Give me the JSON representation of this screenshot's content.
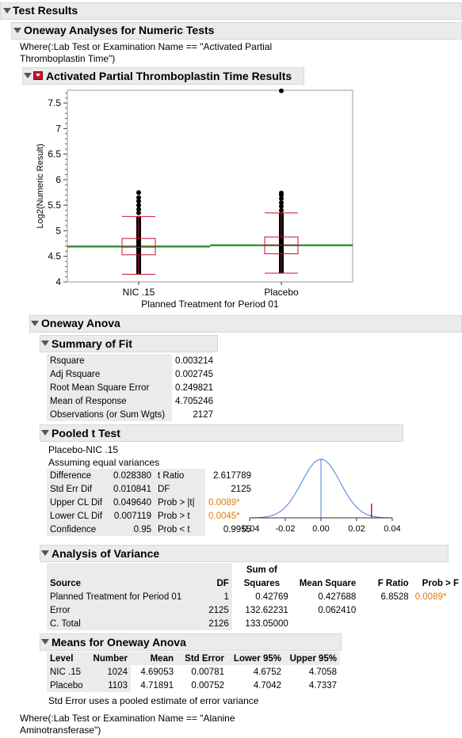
{
  "report": {
    "title": "Test Results",
    "oneway_title": "Oneway Analyses for Numeric Tests",
    "where1_line1": "Where(:Lab Test or Examination Name == \"Activated Partial",
    "where1_line2": "Thromboplastin Time\")",
    "results_title": "Activated Partial Thromboplastin Time Results",
    "where2_line1": "Where(:Lab Test or Examination Name == \"Alanine",
    "where2_line2": "Aminotransferase\")"
  },
  "chart_data": {
    "type": "scatter",
    "xlabel": "Planned Treatment for Period 01",
    "ylabel": "Log2(Numeric Result)",
    "categories": [
      "NIC .15",
      "Placebo"
    ],
    "ylim": [
      4,
      7.75
    ],
    "yticks": [
      "4",
      "4.5",
      "5",
      "5.5",
      "6",
      "6.5",
      "7",
      "7.5"
    ],
    "boxes": [
      {
        "name": "NIC .15",
        "whisker_low": 4.15,
        "q1": 4.53,
        "median": 4.68,
        "q3": 4.85,
        "whisker_high": 5.28,
        "mean": 4.69053,
        "outliers": [
          5.35,
          5.42,
          5.5,
          5.58,
          5.65,
          5.75
        ]
      },
      {
        "name": "Placebo",
        "whisker_low": 4.17,
        "q1": 4.55,
        "median": 4.72,
        "q3": 4.88,
        "whisker_high": 5.35,
        "mean": 4.71891,
        "outliers": [
          5.4,
          5.48,
          5.55,
          5.63,
          5.7,
          5.74,
          7.74
        ]
      }
    ],
    "grand_mean": 4.705246,
    "colors": {
      "box": "#c8102e",
      "points": "#000000",
      "mean_line": "#2a8a2a"
    }
  },
  "anova_title": "Oneway Anova",
  "summary_fit": {
    "title": "Summary of Fit",
    "rows": [
      {
        "label": "Rsquare",
        "value": "0.003214"
      },
      {
        "label": "Adj Rsquare",
        "value": "0.002745"
      },
      {
        "label": "Root Mean Square Error",
        "value": "0.249821"
      },
      {
        "label": "Mean of Response",
        "value": "4.705246"
      },
      {
        "label": "Observations (or Sum Wgts)",
        "value": "2127"
      }
    ]
  },
  "pooled_t": {
    "title": "Pooled t Test",
    "comparison": "Placebo-NIC .15",
    "assumption": "Assuming equal variances",
    "rows": [
      {
        "l1": "Difference",
        "v1": "0.028380",
        "l2": "t Ratio",
        "v2": "2.617789",
        "sig": false
      },
      {
        "l1": "Std Err Dif",
        "v1": "0.010841",
        "l2": "DF",
        "v2": "2125",
        "sig": false
      },
      {
        "l1": "Upper CL Dif",
        "v1": "0.049640",
        "l2": "Prob > |t|",
        "v2": "0.0089*",
        "sig": true
      },
      {
        "l1": "Lower CL Dif",
        "v1": "0.007119",
        "l2": "Prob > t",
        "v2": "0.0045*",
        "sig": true
      },
      {
        "l1": "Confidence",
        "v1": "0.95",
        "l2": "Prob < t",
        "v2": "0.9955",
        "sig": false
      }
    ],
    "curve_ticks": [
      "-0.04",
      "-0.02",
      "0.00",
      "0.02",
      "0.04"
    ],
    "observed_difference": 0.02838,
    "std_err": 0.010841,
    "colors": {
      "curve": "#4a7fd4",
      "marker": "#c8102e"
    }
  },
  "aov": {
    "title": "Analysis of Variance",
    "headers": [
      "Source",
      "DF",
      "Sum of",
      "Squares",
      "Mean Square",
      "F Ratio",
      "Prob > F"
    ],
    "rows": [
      [
        "Planned Treatment for Period 01",
        "1",
        "0.42769",
        "0.427688",
        "6.8528",
        "0.0089*"
      ],
      [
        "Error",
        "2125",
        "132.62231",
        "0.062410",
        "",
        ""
      ],
      [
        "C. Total",
        "2126",
        "133.05000",
        "",
        "",
        ""
      ]
    ]
  },
  "means": {
    "title": "Means for Oneway Anova",
    "headers": [
      "Level",
      "Number",
      "Mean",
      "Std Error",
      "Lower 95%",
      "Upper 95%"
    ],
    "rows": [
      [
        "NIC .15",
        "1024",
        "4.69053",
        "0.00781",
        "4.6752",
        "4.7058"
      ],
      [
        "Placebo",
        "1103",
        "4.71891",
        "0.00752",
        "4.7042",
        "4.7337"
      ]
    ],
    "note": "Std Error uses a pooled estimate of error variance"
  }
}
